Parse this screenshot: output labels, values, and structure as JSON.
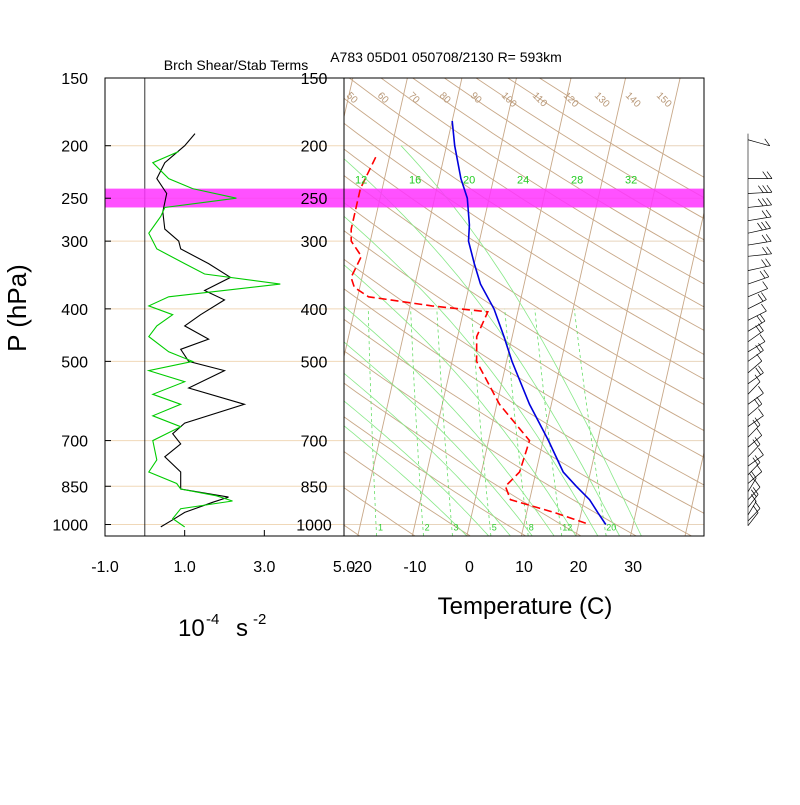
{
  "chart_data": [
    {
      "type": "line",
      "title": "Brch Shear/Stab Terms",
      "xlabel": "10",
      "xlabel_exponent": "-4",
      "xlabel_unit": "s",
      "xlabel_unit_exponent": "-2",
      "ylabel": "P (hPa)",
      "xlim": [
        -1.0,
        5.0
      ],
      "x_ticks": [
        "-1.0",
        "1.0",
        "3.0",
        "5.0"
      ],
      "x_tick_values": [
        -1.0,
        1.0,
        3.0,
        5.0
      ],
      "ylim": [
        1050,
        150
      ],
      "y_scale": "log",
      "y_ticks": [
        "150",
        "200",
        "250",
        "300",
        "400",
        "500",
        "700",
        "850",
        "1000"
      ],
      "y_tick_values": [
        150,
        200,
        250,
        300,
        400,
        500,
        700,
        850,
        1000
      ],
      "zero_line": 0.0,
      "highlight_band_hpa": [
        240,
        260
      ],
      "highlight_color": "#ff33ff",
      "grid_color": "#f0d8b8",
      "series": [
        {
          "color": "#000000",
          "points": [
            [
              1.26,
              190
            ],
            [
              1.0,
              200
            ],
            [
              0.5,
              215
            ],
            [
              0.3,
              230
            ],
            [
              0.55,
              245
            ],
            [
              0.45,
              265
            ],
            [
              0.5,
              285
            ],
            [
              0.85,
              300
            ],
            [
              0.9,
              310
            ],
            [
              1.6,
              330
            ],
            [
              2.15,
              350
            ],
            [
              1.5,
              370
            ],
            [
              2.0,
              385
            ],
            [
              1.4,
              410
            ],
            [
              1.0,
              430
            ],
            [
              1.6,
              455
            ],
            [
              0.9,
              475
            ],
            [
              1.1,
              500
            ],
            [
              2.0,
              520
            ],
            [
              1.1,
              560
            ],
            [
              2.5,
              600
            ],
            [
              1.0,
              650
            ],
            [
              0.7,
              680
            ],
            [
              0.9,
              710
            ],
            [
              0.5,
              750
            ],
            [
              0.9,
              800
            ],
            [
              0.9,
              860
            ],
            [
              2.1,
              890
            ],
            [
              1.7,
              910
            ],
            [
              1.0,
              950
            ],
            [
              0.7,
              980
            ],
            [
              0.4,
              1010
            ]
          ]
        },
        {
          "color": "#00cc00",
          "points": [
            [
              0.85,
              205
            ],
            [
              0.2,
              215
            ],
            [
              0.6,
              230
            ],
            [
              1.2,
              240
            ],
            [
              2.3,
              250
            ],
            [
              0.5,
              260
            ],
            [
              0.4,
              270
            ],
            [
              0.1,
              290
            ],
            [
              0.3,
              310
            ],
            [
              1.0,
              330
            ],
            [
              1.5,
              345
            ],
            [
              3.4,
              360
            ],
            [
              0.6,
              380
            ],
            [
              0.1,
              395
            ],
            [
              0.7,
              410
            ],
            [
              0.3,
              430
            ],
            [
              0.1,
              450
            ],
            [
              0.6,
              480
            ],
            [
              1.2,
              500
            ],
            [
              0.1,
              520
            ],
            [
              1.0,
              545
            ],
            [
              0.2,
              575
            ],
            [
              0.9,
              600
            ],
            [
              0.2,
              630
            ],
            [
              0.9,
              660
            ],
            [
              0.2,
              700
            ],
            [
              0.3,
              760
            ],
            [
              0.1,
              800
            ],
            [
              0.8,
              840
            ],
            [
              0.9,
              860
            ],
            [
              1.8,
              885
            ],
            [
              2.2,
              905
            ],
            [
              0.9,
              935
            ],
            [
              0.7,
              975
            ],
            [
              1.0,
              1010
            ]
          ]
        }
      ]
    },
    {
      "type": "line",
      "title": "A783 05D01 050708/2130 R= 593km",
      "xlabel": "Temperature (C)",
      "xlim": [
        -23,
        43
      ],
      "x_ticks": [
        "-20",
        "-10",
        "0",
        "10",
        "20",
        "30"
      ],
      "x_tick_values": [
        -20,
        -10,
        0,
        10,
        20,
        30
      ],
      "ylim": [
        1050,
        150
      ],
      "y_scale": "log",
      "y_ticks": [
        "150",
        "200",
        "250",
        "300",
        "400",
        "500",
        "700",
        "850",
        "1000"
      ],
      "y_tick_values": [
        150,
        200,
        250,
        300,
        400,
        500,
        700,
        850,
        1000
      ],
      "skew_c_per_decade": 22.6,
      "mixing_ratio_labels": [
        "1",
        "2",
        "3",
        "5",
        "8",
        "12",
        "20"
      ],
      "mixing_ratio_values": [
        1,
        2,
        3,
        5,
        8,
        12,
        20
      ],
      "theta_e_labels": [
        "12",
        "16",
        "20",
        "24",
        "28",
        "32"
      ],
      "isentrope_labels": [
        "50",
        "60",
        "70",
        "80",
        "90",
        "100",
        "110",
        "120",
        "130",
        "140",
        "150"
      ],
      "series": [
        {
          "color": "#0000dd",
          "style": "solid",
          "points": [
            [
              -20.0,
              180
            ],
            [
              -18.5,
              200
            ],
            [
              -16.0,
              230
            ],
            [
              -14.0,
              250
            ],
            [
              -12.5,
              280
            ],
            [
              -12.0,
              300
            ],
            [
              -10.0,
              330
            ],
            [
              -8.0,
              360
            ],
            [
              -4.5,
              400
            ],
            [
              -1.5,
              450
            ],
            [
              1.0,
              500
            ],
            [
              6.0,
              600
            ],
            [
              11.0,
              700
            ],
            [
              15.0,
              800
            ],
            [
              18.0,
              850
            ],
            [
              21.0,
              900
            ],
            [
              23.0,
              950
            ],
            [
              25.0,
              1000
            ]
          ]
        },
        {
          "color": "#ff0000",
          "style": "dashed",
          "points": [
            [
              -32.5,
              210
            ],
            [
              -34.0,
              240
            ],
            [
              -34.0,
              260
            ],
            [
              -34.0,
              285
            ],
            [
              -33.5,
              300
            ],
            [
              -31.0,
              320
            ],
            [
              -32.0,
              350
            ],
            [
              -31.0,
              365
            ],
            [
              -28.0,
              380
            ],
            [
              -16.0,
              395
            ],
            [
              -5.5,
              405
            ],
            [
              -6.5,
              450
            ],
            [
              -5.5,
              500
            ],
            [
              0.5,
              600
            ],
            [
              7.5,
              700
            ],
            [
              7.0,
              800
            ],
            [
              5.0,
              850
            ],
            [
              6.5,
              900
            ],
            [
              15.0,
              950
            ],
            [
              22.0,
              1000
            ]
          ]
        }
      ]
    }
  ],
  "wind_barbs": [
    {
      "p": 195,
      "dir": 295,
      "spd": 5
    },
    {
      "p": 230,
      "dir": 270,
      "spd": 20
    },
    {
      "p": 245,
      "dir": 265,
      "spd": 25
    },
    {
      "p": 260,
      "dir": 260,
      "spd": 25
    },
    {
      "p": 275,
      "dir": 255,
      "spd": 20
    },
    {
      "p": 290,
      "dir": 250,
      "spd": 25
    },
    {
      "p": 305,
      "dir": 255,
      "spd": 20
    },
    {
      "p": 320,
      "dir": 260,
      "spd": 20
    },
    {
      "p": 340,
      "dir": 250,
      "spd": 15
    },
    {
      "p": 360,
      "dir": 240,
      "spd": 15
    },
    {
      "p": 380,
      "dir": 235,
      "spd": 10
    },
    {
      "p": 400,
      "dir": 230,
      "spd": 15
    },
    {
      "p": 420,
      "dir": 230,
      "spd": 10
    },
    {
      "p": 440,
      "dir": 225,
      "spd": 15
    },
    {
      "p": 460,
      "dir": 220,
      "spd": 15
    },
    {
      "p": 480,
      "dir": 225,
      "spd": 10
    },
    {
      "p": 500,
      "dir": 220,
      "spd": 15
    },
    {
      "p": 525,
      "dir": 215,
      "spd": 10
    },
    {
      "p": 550,
      "dir": 220,
      "spd": 15
    },
    {
      "p": 575,
      "dir": 210,
      "spd": 10
    },
    {
      "p": 600,
      "dir": 220,
      "spd": 10
    },
    {
      "p": 630,
      "dir": 215,
      "spd": 15
    },
    {
      "p": 660,
      "dir": 220,
      "spd": 10
    },
    {
      "p": 690,
      "dir": 210,
      "spd": 15
    },
    {
      "p": 720,
      "dir": 215,
      "spd": 10
    },
    {
      "p": 750,
      "dir": 210,
      "spd": 15
    },
    {
      "p": 780,
      "dir": 220,
      "spd": 10
    },
    {
      "p": 810,
      "dir": 210,
      "spd": 15
    },
    {
      "p": 840,
      "dir": 215,
      "spd": 10
    },
    {
      "p": 870,
      "dir": 200,
      "spd": 15
    },
    {
      "p": 900,
      "dir": 210,
      "spd": 10
    },
    {
      "p": 930,
      "dir": 205,
      "spd": 15
    },
    {
      "p": 960,
      "dir": 200,
      "spd": 10
    },
    {
      "p": 985,
      "dir": 210,
      "spd": 10
    },
    {
      "p": 1005,
      "dir": 205,
      "spd": 10
    }
  ]
}
